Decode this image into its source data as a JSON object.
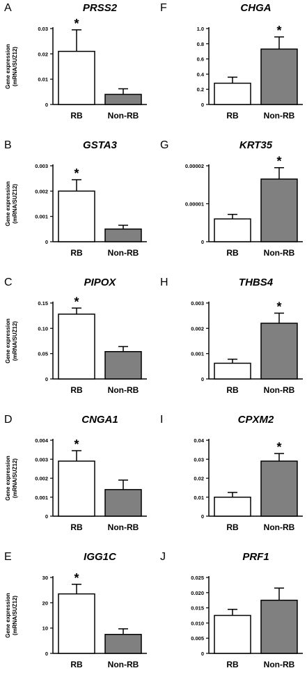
{
  "figure": {
    "shared_ylabel_line1": "Gene expression",
    "shared_ylabel_line2": "(mRNA/SUZ12)"
  },
  "colors": {
    "rb_fill": "#ffffff",
    "nonrb_fill": "#808080",
    "stroke": "#000000"
  },
  "chart_data": [
    {
      "panel": "A",
      "gene": "PRSS2",
      "type": "bar",
      "categories": [
        "RB",
        "Non-RB"
      ],
      "values": [
        0.021,
        0.004
      ],
      "errors": [
        0.0085,
        0.0022
      ],
      "significant": [
        true,
        false
      ],
      "ylim": [
        0,
        0.03
      ],
      "yticks": [
        0,
        0.01,
        0.02,
        0.03
      ],
      "ytick_labels": [
        "0",
        "0.01",
        "0.02",
        "0.03"
      ],
      "ylabel": [
        "Gene expression",
        "(mRNA/SUZ12)"
      ]
    },
    {
      "panel": "F",
      "gene": "CHGA",
      "type": "bar",
      "categories": [
        "RB",
        "Non-RB"
      ],
      "values": [
        0.28,
        0.73
      ],
      "errors": [
        0.08,
        0.16
      ],
      "significant": [
        false,
        true
      ],
      "ylim": [
        0,
        1.0
      ],
      "yticks": [
        0,
        0.2,
        0.4,
        0.6,
        0.8,
        1.0
      ],
      "ytick_labels": [
        "0",
        "0.2",
        "0.4",
        "0.6",
        "0.8",
        "1.0"
      ],
      "ylabel": []
    },
    {
      "panel": "B",
      "gene": "GSTA3",
      "type": "bar",
      "categories": [
        "RB",
        "Non-RB"
      ],
      "values": [
        0.002,
        0.0005
      ],
      "errors": [
        0.00045,
        0.00015
      ],
      "significant": [
        true,
        false
      ],
      "ylim": [
        0,
        0.003
      ],
      "yticks": [
        0,
        0.001,
        0.002,
        0.003
      ],
      "ytick_labels": [
        "0",
        "0.001",
        "0.002",
        "0.003"
      ],
      "ylabel": [
        "Gene expression",
        "(mRNA/SUZ12)"
      ]
    },
    {
      "panel": "G",
      "gene": "KRT35",
      "type": "bar",
      "categories": [
        "RB",
        "Non-RB"
      ],
      "values": [
        6e-06,
        1.65e-05
      ],
      "errors": [
        1.2e-06,
        3e-06
      ],
      "significant": [
        false,
        true
      ],
      "ylim": [
        0,
        2e-05
      ],
      "yticks": [
        0,
        1e-05,
        2e-05
      ],
      "ytick_labels": [
        "0",
        "0.00001",
        "0.00002"
      ],
      "ylabel": []
    },
    {
      "panel": "C",
      "gene": "PIPOX",
      "type": "bar",
      "categories": [
        "RB",
        "Non-RB"
      ],
      "values": [
        0.128,
        0.054
      ],
      "errors": [
        0.012,
        0.01
      ],
      "significant": [
        true,
        false
      ],
      "ylim": [
        0,
        0.15
      ],
      "yticks": [
        0,
        0.05,
        0.1,
        0.15
      ],
      "ytick_labels": [
        "0",
        "0.05",
        "0.10",
        "0.15"
      ],
      "ylabel": [
        "Gene expression",
        "(mRNA/SUZ12)"
      ]
    },
    {
      "panel": "H",
      "gene": "THBS4",
      "type": "bar",
      "categories": [
        "RB",
        "Non-RB"
      ],
      "values": [
        0.00062,
        0.0022
      ],
      "errors": [
        0.00016,
        0.0004
      ],
      "significant": [
        false,
        true
      ],
      "ylim": [
        0,
        0.003
      ],
      "yticks": [
        0,
        0.001,
        0.002,
        0.003
      ],
      "ytick_labels": [
        "0",
        "0.001",
        "0.002",
        "0.003"
      ],
      "ylabel": []
    },
    {
      "panel": "D",
      "gene": "CNGA1",
      "type": "bar",
      "categories": [
        "RB",
        "Non-RB"
      ],
      "values": [
        0.0029,
        0.0014
      ],
      "errors": [
        0.00055,
        0.0005
      ],
      "significant": [
        true,
        false
      ],
      "ylim": [
        0,
        0.004
      ],
      "yticks": [
        0,
        0.001,
        0.002,
        0.003,
        0.004
      ],
      "ytick_labels": [
        "0",
        "0.001",
        "0.002",
        "0.003",
        "0.004"
      ],
      "ylabel": [
        "Gene expression",
        "(mRNA/SUZ12)"
      ]
    },
    {
      "panel": "I",
      "gene": "CPXM2",
      "type": "bar",
      "categories": [
        "RB",
        "Non-RB"
      ],
      "values": [
        0.01,
        0.029
      ],
      "errors": [
        0.0025,
        0.004
      ],
      "significant": [
        false,
        true
      ],
      "ylim": [
        0,
        0.04
      ],
      "yticks": [
        0,
        0.01,
        0.02,
        0.03,
        0.04
      ],
      "ytick_labels": [
        "0",
        "0.01",
        "0.02",
        "0.03",
        "0.04"
      ],
      "ylabel": []
    },
    {
      "panel": "E",
      "gene": "IGG1C",
      "type": "bar",
      "categories": [
        "RB",
        "Non-RB"
      ],
      "values": [
        23.5,
        7.5
      ],
      "errors": [
        3.8,
        2.2
      ],
      "significant": [
        true,
        false
      ],
      "ylim": [
        0,
        30
      ],
      "yticks": [
        0,
        10,
        20,
        30
      ],
      "ytick_labels": [
        "0",
        "10",
        "20",
        "30"
      ],
      "ylabel": [
        "Gene expression",
        "(mRNA/SUZ12)"
      ]
    },
    {
      "panel": "J",
      "gene": "PRF1",
      "type": "bar",
      "categories": [
        "RB",
        "Non-RB"
      ],
      "values": [
        0.0125,
        0.0175
      ],
      "errors": [
        0.002,
        0.004
      ],
      "significant": [
        false,
        false
      ],
      "ylim": [
        0,
        0.025
      ],
      "yticks": [
        0,
        0.005,
        0.01,
        0.015,
        0.02,
        0.025
      ],
      "ytick_labels": [
        "0",
        "0.005",
        "0.010",
        "0.015",
        "0.020",
        "0.025"
      ],
      "ylabel": []
    }
  ]
}
